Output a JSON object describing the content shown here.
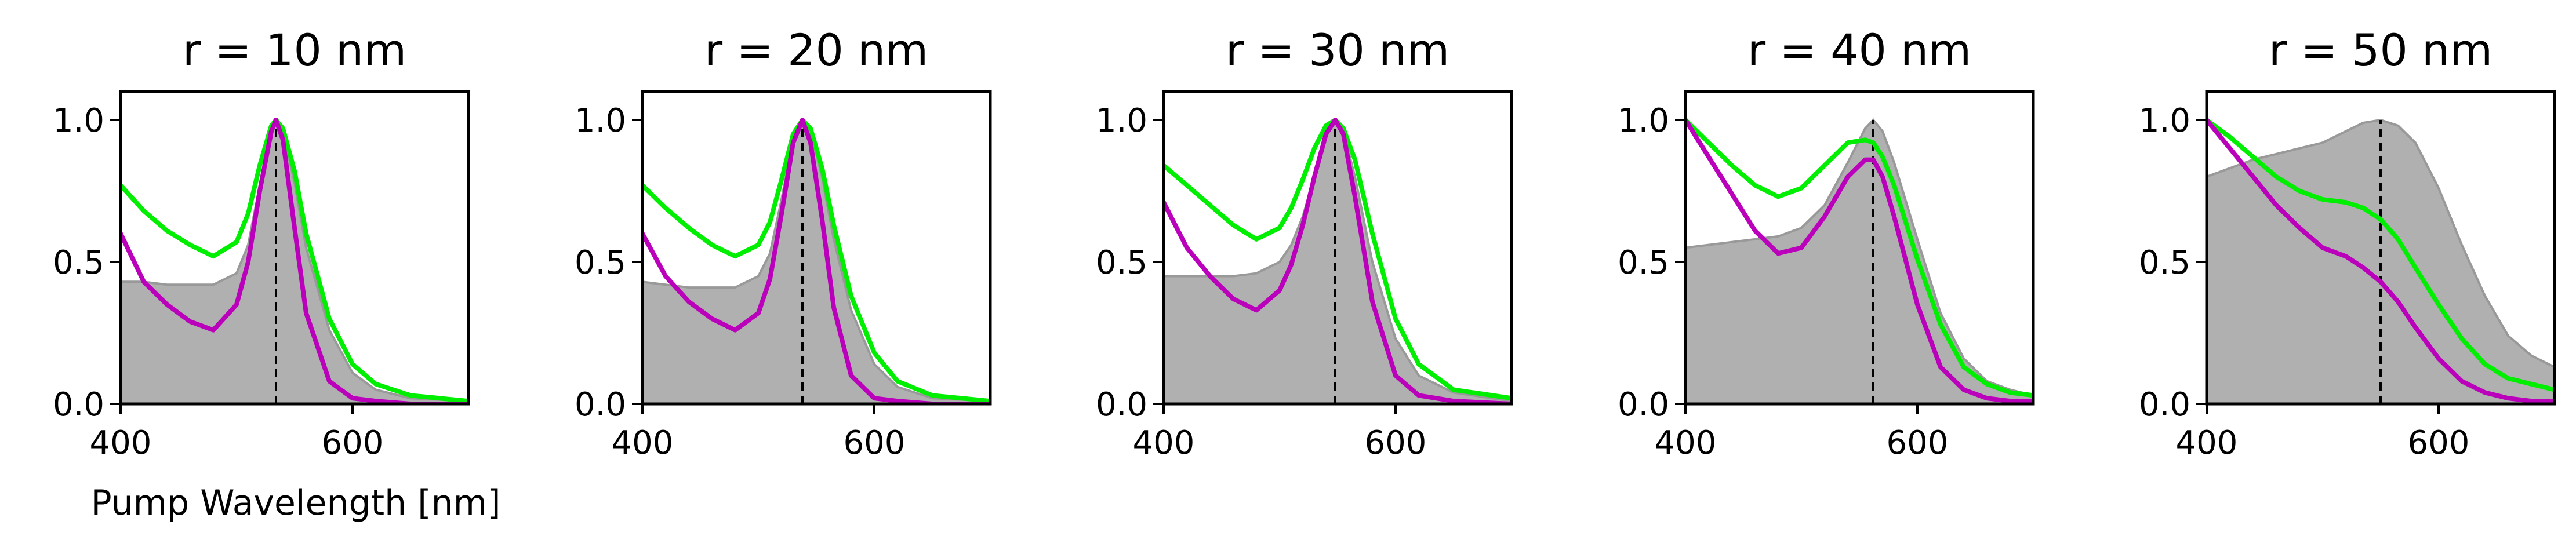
{
  "figure": {
    "xlabel": "Pump Wavelength [nm]"
  },
  "colors": {
    "fill": "#b0b0b0",
    "fill_edge": "#999999",
    "green": "#00ee00",
    "magenta": "#bb00bb",
    "peak_line": "#000000"
  },
  "chart_data": [
    {
      "type": "line",
      "title": "r = 10 nm",
      "xlim": [
        400,
        700
      ],
      "ylim": [
        0,
        1.1
      ],
      "xticks": [
        400,
        600
      ],
      "yticks": [
        0.0,
        0.5,
        1.0
      ],
      "xtick_labels": [
        "400",
        "600"
      ],
      "ytick_labels": [
        "0.0",
        "0.5",
        "1.0"
      ],
      "peak": 534,
      "x": [
        400,
        420,
        440,
        460,
        480,
        500,
        510,
        520,
        530,
        534,
        540,
        550,
        560,
        580,
        600,
        620,
        650,
        700
      ],
      "series": [
        {
          "kind": "area",
          "values": [
            0.43,
            0.43,
            0.42,
            0.42,
            0.42,
            0.46,
            0.56,
            0.77,
            0.97,
            1.0,
            0.96,
            0.78,
            0.55,
            0.26,
            0.11,
            0.05,
            0.02,
            0.01
          ]
        },
        {
          "kind": "green",
          "values": [
            0.77,
            0.68,
            0.61,
            0.56,
            0.52,
            0.57,
            0.67,
            0.84,
            0.98,
            1.0,
            0.97,
            0.82,
            0.6,
            0.3,
            0.14,
            0.07,
            0.03,
            0.01
          ]
        },
        {
          "kind": "magenta",
          "values": [
            0.6,
            0.43,
            0.35,
            0.29,
            0.26,
            0.35,
            0.5,
            0.75,
            0.96,
            1.0,
            0.93,
            0.62,
            0.32,
            0.08,
            0.02,
            0.01,
            0.0,
            0.0
          ]
        }
      ]
    },
    {
      "type": "line",
      "title": "r = 20 nm",
      "xlim": [
        400,
        700
      ],
      "ylim": [
        0,
        1.1
      ],
      "xticks": [
        400,
        600
      ],
      "yticks": [
        0.0,
        0.5,
        1.0
      ],
      "xtick_labels": [
        "400",
        "600"
      ],
      "ytick_labels": [
        "0.0",
        "0.5",
        "1.0"
      ],
      "peak": 538,
      "x": [
        400,
        420,
        440,
        460,
        480,
        500,
        510,
        520,
        530,
        538,
        545,
        555,
        565,
        580,
        600,
        620,
        650,
        700
      ],
      "series": [
        {
          "kind": "area",
          "values": [
            0.43,
            0.42,
            0.41,
            0.41,
            0.41,
            0.45,
            0.53,
            0.72,
            0.93,
            1.0,
            0.96,
            0.8,
            0.58,
            0.33,
            0.14,
            0.06,
            0.02,
            0.01
          ]
        },
        {
          "kind": "green",
          "values": [
            0.77,
            0.69,
            0.62,
            0.56,
            0.52,
            0.56,
            0.64,
            0.79,
            0.95,
            1.0,
            0.97,
            0.83,
            0.63,
            0.38,
            0.18,
            0.08,
            0.03,
            0.01
          ]
        },
        {
          "kind": "magenta",
          "values": [
            0.6,
            0.45,
            0.36,
            0.3,
            0.26,
            0.32,
            0.44,
            0.67,
            0.92,
            1.0,
            0.92,
            0.65,
            0.34,
            0.1,
            0.02,
            0.01,
            0.0,
            0.0
          ]
        }
      ]
    },
    {
      "type": "line",
      "title": "r = 30 nm",
      "xlim": [
        400,
        700
      ],
      "ylim": [
        0,
        1.1
      ],
      "xticks": [
        400,
        600
      ],
      "yticks": [
        0.0,
        0.5,
        1.0
      ],
      "xtick_labels": [
        "400",
        "600"
      ],
      "ytick_labels": [
        "0.0",
        "0.5",
        "1.0"
      ],
      "peak": 548,
      "x": [
        400,
        420,
        440,
        460,
        480,
        500,
        510,
        520,
        530,
        540,
        548,
        555,
        565,
        580,
        600,
        620,
        650,
        700
      ],
      "series": [
        {
          "kind": "area",
          "values": [
            0.45,
            0.45,
            0.45,
            0.45,
            0.46,
            0.5,
            0.56,
            0.66,
            0.8,
            0.94,
            1.0,
            0.96,
            0.8,
            0.5,
            0.23,
            0.1,
            0.04,
            0.01
          ]
        },
        {
          "kind": "green",
          "values": [
            0.84,
            0.77,
            0.7,
            0.63,
            0.58,
            0.62,
            0.69,
            0.79,
            0.9,
            0.98,
            1.0,
            0.97,
            0.86,
            0.6,
            0.3,
            0.14,
            0.05,
            0.02
          ]
        },
        {
          "kind": "magenta",
          "values": [
            0.71,
            0.55,
            0.45,
            0.37,
            0.33,
            0.4,
            0.49,
            0.63,
            0.8,
            0.95,
            1.0,
            0.95,
            0.73,
            0.36,
            0.1,
            0.03,
            0.01,
            0.0
          ]
        }
      ]
    },
    {
      "type": "line",
      "title": "r = 40 nm",
      "xlim": [
        400,
        700
      ],
      "ylim": [
        0,
        1.1
      ],
      "xticks": [
        400,
        600
      ],
      "yticks": [
        0.0,
        0.5,
        1.0
      ],
      "xtick_labels": [
        "400",
        "600"
      ],
      "ytick_labels": [
        "0.0",
        "0.5",
        "1.0"
      ],
      "peak": 562,
      "x": [
        400,
        420,
        440,
        460,
        480,
        500,
        520,
        540,
        555,
        562,
        570,
        580,
        600,
        620,
        640,
        660,
        680,
        700
      ],
      "series": [
        {
          "kind": "area",
          "values": [
            0.55,
            0.56,
            0.57,
            0.58,
            0.59,
            0.62,
            0.7,
            0.85,
            0.97,
            1.0,
            0.96,
            0.85,
            0.58,
            0.32,
            0.16,
            0.08,
            0.05,
            0.03
          ]
        },
        {
          "kind": "green",
          "values": [
            1.0,
            0.92,
            0.84,
            0.77,
            0.73,
            0.76,
            0.84,
            0.92,
            0.93,
            0.92,
            0.87,
            0.77,
            0.51,
            0.28,
            0.13,
            0.07,
            0.04,
            0.03
          ]
        },
        {
          "kind": "magenta",
          "values": [
            1.0,
            0.87,
            0.74,
            0.61,
            0.53,
            0.55,
            0.66,
            0.8,
            0.86,
            0.86,
            0.8,
            0.66,
            0.35,
            0.13,
            0.05,
            0.02,
            0.01,
            0.01
          ]
        }
      ]
    },
    {
      "type": "line",
      "title": "r = 50 nm",
      "xlim": [
        400,
        700
      ],
      "ylim": [
        0,
        1.1
      ],
      "xticks": [
        400,
        600
      ],
      "yticks": [
        0.0,
        0.5,
        1.0
      ],
      "xtick_labels": [
        "400",
        "600"
      ],
      "ytick_labels": [
        "0.0",
        "0.5",
        "1.0"
      ],
      "peak": 550,
      "x": [
        400,
        420,
        440,
        460,
        480,
        500,
        520,
        535,
        550,
        565,
        580,
        600,
        620,
        640,
        660,
        680,
        700
      ],
      "series": [
        {
          "kind": "area",
          "values": [
            0.8,
            0.83,
            0.86,
            0.88,
            0.9,
            0.92,
            0.96,
            0.99,
            1.0,
            0.98,
            0.92,
            0.76,
            0.56,
            0.38,
            0.24,
            0.17,
            0.13
          ]
        },
        {
          "kind": "green",
          "values": [
            1.0,
            0.94,
            0.87,
            0.8,
            0.75,
            0.72,
            0.71,
            0.69,
            0.65,
            0.58,
            0.48,
            0.35,
            0.23,
            0.14,
            0.09,
            0.07,
            0.05
          ]
        },
        {
          "kind": "magenta",
          "values": [
            1.0,
            0.9,
            0.8,
            0.7,
            0.62,
            0.55,
            0.52,
            0.48,
            0.43,
            0.36,
            0.27,
            0.16,
            0.08,
            0.04,
            0.02,
            0.01,
            0.01
          ]
        }
      ]
    }
  ]
}
